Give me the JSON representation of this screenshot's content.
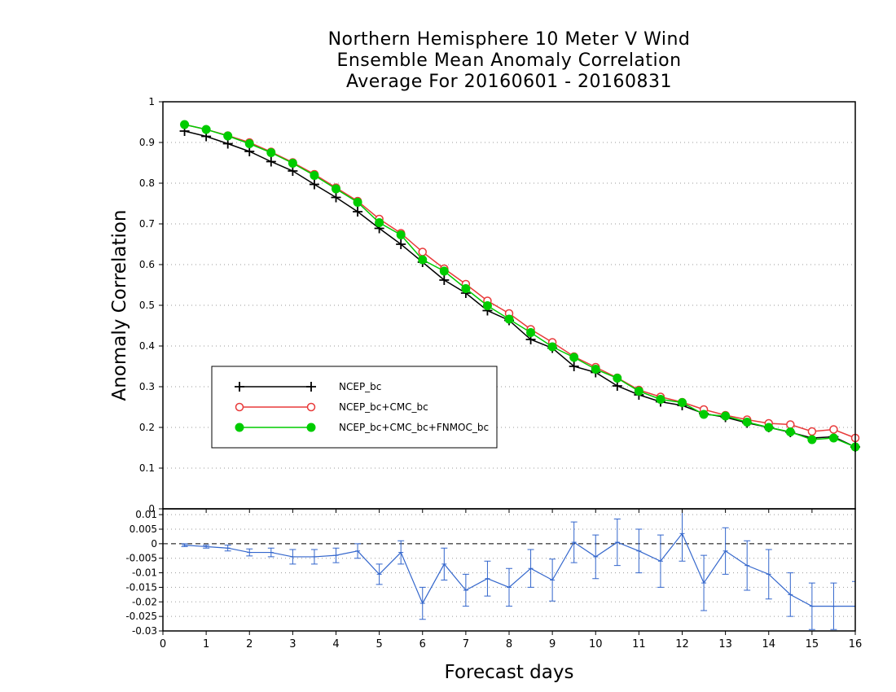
{
  "chart_data": [
    {
      "type": "line",
      "title": [
        "Northern Hemisphere 10 Meter V Wind",
        "Ensemble Mean Anomaly Correlation",
        "Average For 20160601 - 20160831"
      ],
      "xlabel": "Forecast days",
      "ylabel": "Anomaly Correlation",
      "xlim": [
        0,
        16
      ],
      "ylim": [
        0,
        1
      ],
      "grid": true,
      "legend_position": "left",
      "y_ticks": [
        "0",
        "0.1",
        "0.2",
        "0.3",
        "0.4",
        "0.5",
        "0.6",
        "0.7",
        "0.8",
        "0.9",
        "1"
      ],
      "x": [
        0.5,
        1,
        1.5,
        2,
        2.5,
        3,
        3.5,
        4,
        4.5,
        5,
        5.5,
        6,
        6.5,
        7,
        7.5,
        8,
        8.5,
        9,
        9.5,
        10,
        10.5,
        11,
        11.5,
        12,
        12.5,
        13,
        13.5,
        14,
        14.5,
        15,
        15.5,
        16
      ],
      "series": [
        {
          "name": "NCEP_bc",
          "color": "#000000",
          "marker": "plus",
          "values": [
            0.928,
            0.915,
            0.897,
            0.878,
            0.853,
            0.83,
            0.797,
            0.765,
            0.73,
            0.689,
            0.65,
            0.606,
            0.562,
            0.53,
            0.487,
            0.463,
            0.416,
            0.395,
            0.35,
            0.335,
            0.302,
            0.28,
            0.263,
            0.254,
            0.234,
            0.225,
            0.211,
            0.2,
            0.188,
            0.174,
            0.177,
            0.152
          ]
        },
        {
          "name": "NCEP_bc+CMC_bc",
          "color": "#e83a3a",
          "marker": "open-circle",
          "values": [
            0.944,
            0.932,
            0.917,
            0.9,
            0.877,
            0.851,
            0.822,
            0.789,
            0.756,
            0.712,
            0.677,
            0.631,
            0.59,
            0.552,
            0.511,
            0.48,
            0.441,
            0.409,
            0.374,
            0.348,
            0.322,
            0.292,
            0.275,
            0.262,
            0.244,
            0.23,
            0.219,
            0.21,
            0.207,
            0.19,
            0.195,
            0.174
          ]
        },
        {
          "name": "NCEP_bc+CMC_bc+FNMOC_bc",
          "color": "#00cc00",
          "marker": "filled-circle",
          "values": [
            0.944,
            0.932,
            0.916,
            0.897,
            0.875,
            0.849,
            0.819,
            0.786,
            0.753,
            0.703,
            0.673,
            0.612,
            0.584,
            0.541,
            0.499,
            0.466,
            0.433,
            0.398,
            0.372,
            0.343,
            0.321,
            0.289,
            0.269,
            0.261,
            0.232,
            0.228,
            0.213,
            0.2,
            0.189,
            0.17,
            0.174,
            0.152
          ]
        }
      ]
    },
    {
      "type": "line",
      "xlim": [
        0,
        16
      ],
      "ylim": [
        -0.03,
        0.012
      ],
      "zero_line": true,
      "x_ticks": [
        "0",
        "1",
        "2",
        "3",
        "4",
        "5",
        "6",
        "7",
        "8",
        "9",
        "10",
        "11",
        "12",
        "13",
        "14",
        "15",
        "16"
      ],
      "y_ticks": [
        "0.01",
        "0.005",
        "0",
        "-0.005",
        "-0.01",
        "-0.015",
        "-0.02",
        "-0.025",
        "-0.03"
      ],
      "x": [
        0.5,
        1,
        1.5,
        2,
        2.5,
        3,
        3.5,
        4,
        4.5,
        5,
        5.5,
        6,
        6.5,
        7,
        7.5,
        8,
        8.5,
        9,
        9.5,
        10,
        10.5,
        11,
        11.5,
        12,
        12.5,
        13,
        13.5,
        14,
        14.5,
        15,
        15.5,
        16
      ],
      "series": [
        {
          "color": "#3366cc",
          "values": [
            -0.0005,
            -0.001,
            -0.0015,
            -0.003,
            -0.003,
            -0.0045,
            -0.0045,
            -0.004,
            -0.0025,
            -0.0105,
            -0.003,
            -0.0205,
            -0.007,
            -0.016,
            -0.012,
            -0.015,
            -0.0085,
            -0.0125,
            0.0005,
            -0.0045,
            0.0005,
            -0.0025,
            -0.006,
            0.0035,
            -0.0135,
            -0.0025,
            -0.0075,
            -0.0105,
            -0.0175,
            -0.0215,
            -0.0215,
            -0.0215
          ],
          "error_bar_halfwidth": [
            0.0005,
            0.0005,
            0.001,
            0.0012,
            0.0015,
            0.0025,
            0.0025,
            0.0025,
            0.0025,
            0.0035,
            0.004,
            0.0055,
            0.0055,
            0.0055,
            0.006,
            0.0065,
            0.0065,
            0.0072,
            0.007,
            0.0075,
            0.008,
            0.0075,
            0.009,
            0.0095,
            0.0095,
            0.008,
            0.0085,
            0.0085,
            0.0075,
            0.008,
            0.008,
            0.0085
          ]
        }
      ]
    }
  ],
  "colors": {
    "grid": "#9a9a9a",
    "frame": "#000000"
  }
}
